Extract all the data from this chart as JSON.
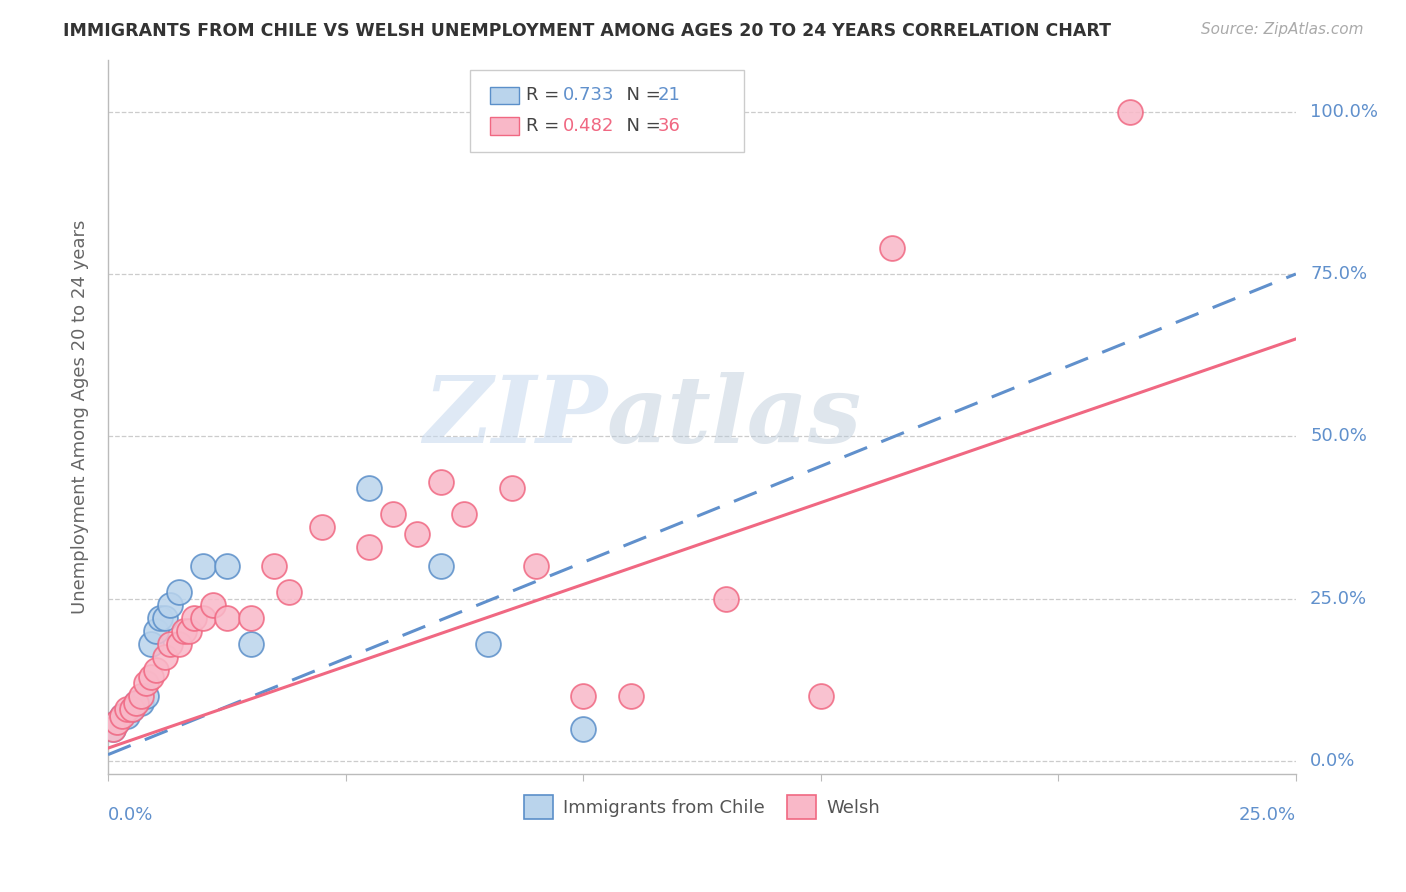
{
  "title": "IMMIGRANTS FROM CHILE VS WELSH UNEMPLOYMENT AMONG AGES 20 TO 24 YEARS CORRELATION CHART",
  "source": "Source: ZipAtlas.com",
  "ylabel": "Unemployment Among Ages 20 to 24 years",
  "ylabel_ticks": [
    "0.0%",
    "25.0%",
    "50.0%",
    "75.0%",
    "100.0%"
  ],
  "ylabel_tick_vals": [
    0.0,
    0.25,
    0.5,
    0.75,
    1.0
  ],
  "xlim": [
    0,
    0.25
  ],
  "ylim": [
    -0.02,
    1.08
  ],
  "legend1_R": "0.733",
  "legend1_N": "21",
  "legend2_R": "0.482",
  "legend2_N": "36",
  "chile_color": "#bad4ec",
  "welsh_color": "#f9b8c8",
  "chile_edge_color": "#5b8fc9",
  "welsh_edge_color": "#f06882",
  "chile_line_color": "#6090cc",
  "welsh_line_color": "#f06882",
  "watermark_zip": "ZIP",
  "watermark_atlas": "atlas",
  "chile_scatter": [
    [
      0.001,
      0.05
    ],
    [
      0.002,
      0.06
    ],
    [
      0.003,
      0.07
    ],
    [
      0.004,
      0.07
    ],
    [
      0.005,
      0.08
    ],
    [
      0.006,
      0.09
    ],
    [
      0.007,
      0.09
    ],
    [
      0.008,
      0.1
    ],
    [
      0.009,
      0.18
    ],
    [
      0.01,
      0.2
    ],
    [
      0.011,
      0.22
    ],
    [
      0.012,
      0.22
    ],
    [
      0.013,
      0.24
    ],
    [
      0.015,
      0.26
    ],
    [
      0.02,
      0.3
    ],
    [
      0.025,
      0.3
    ],
    [
      0.03,
      0.18
    ],
    [
      0.055,
      0.42
    ],
    [
      0.07,
      0.3
    ],
    [
      0.08,
      0.18
    ],
    [
      0.1,
      0.05
    ]
  ],
  "welsh_scatter": [
    [
      0.001,
      0.05
    ],
    [
      0.002,
      0.06
    ],
    [
      0.003,
      0.07
    ],
    [
      0.004,
      0.08
    ],
    [
      0.005,
      0.08
    ],
    [
      0.006,
      0.09
    ],
    [
      0.007,
      0.1
    ],
    [
      0.008,
      0.12
    ],
    [
      0.009,
      0.13
    ],
    [
      0.01,
      0.14
    ],
    [
      0.012,
      0.16
    ],
    [
      0.013,
      0.18
    ],
    [
      0.015,
      0.18
    ],
    [
      0.016,
      0.2
    ],
    [
      0.017,
      0.2
    ],
    [
      0.018,
      0.22
    ],
    [
      0.02,
      0.22
    ],
    [
      0.022,
      0.24
    ],
    [
      0.025,
      0.22
    ],
    [
      0.03,
      0.22
    ],
    [
      0.035,
      0.3
    ],
    [
      0.038,
      0.26
    ],
    [
      0.045,
      0.36
    ],
    [
      0.055,
      0.33
    ],
    [
      0.06,
      0.38
    ],
    [
      0.065,
      0.35
    ],
    [
      0.07,
      0.43
    ],
    [
      0.075,
      0.38
    ],
    [
      0.085,
      0.42
    ],
    [
      0.09,
      0.3
    ],
    [
      0.1,
      0.1
    ],
    [
      0.11,
      0.1
    ],
    [
      0.13,
      0.25
    ],
    [
      0.15,
      0.1
    ],
    [
      0.165,
      0.79
    ],
    [
      0.215,
      1.0
    ]
  ]
}
